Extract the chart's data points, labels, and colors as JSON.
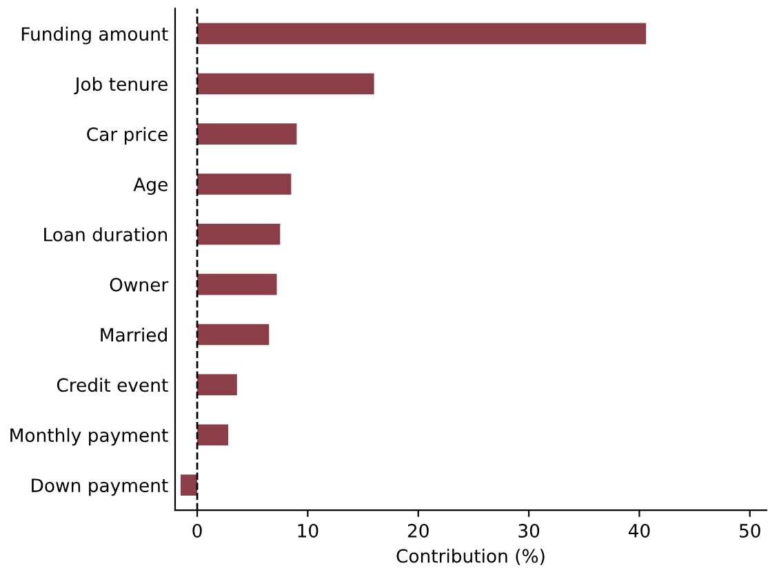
{
  "chart_data": {
    "type": "bar",
    "orientation": "horizontal",
    "xlabel": "Contribution (%)",
    "categories": [
      "Funding amount",
      "Job tenure",
      "Car price",
      "Age",
      "Loan duration",
      "Owner",
      "Married",
      "Credit event",
      "Monthly payment",
      "Down payment"
    ],
    "values": [
      40.6,
      16.0,
      9.0,
      8.5,
      7.5,
      7.2,
      6.5,
      3.6,
      2.8,
      -1.5
    ],
    "color": "#8b3d48",
    "xlim": [
      -2,
      51.5
    ],
    "xticks": [
      0,
      10,
      20,
      30,
      40,
      50
    ],
    "ref_lines": [
      {
        "axis": "x",
        "value": 0,
        "color": "#000000",
        "line_style": "dashed"
      }
    ],
    "grid": false,
    "legend": false
  }
}
